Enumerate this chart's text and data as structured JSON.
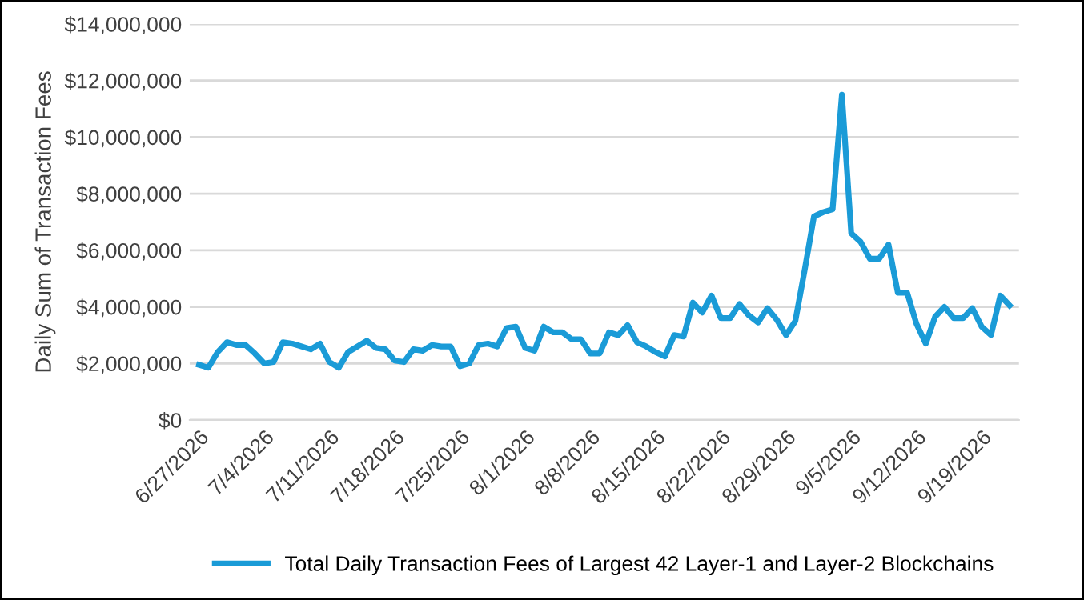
{
  "chart_data": {
    "type": "line",
    "ylabel": "Daily Sum of Transaction Fees",
    "categories": [
      "6/27/2026",
      null,
      null,
      null,
      null,
      null,
      null,
      "7/4/2026",
      null,
      null,
      null,
      null,
      null,
      null,
      "7/11/2026",
      null,
      null,
      null,
      null,
      null,
      null,
      "7/18/2026",
      null,
      null,
      null,
      null,
      null,
      null,
      "7/25/2026",
      null,
      null,
      null,
      null,
      null,
      null,
      "8/1/2026",
      null,
      null,
      null,
      null,
      null,
      null,
      "8/8/2026",
      null,
      null,
      null,
      null,
      null,
      null,
      "8/15/2026",
      null,
      null,
      null,
      null,
      null,
      null,
      "8/22/2026",
      null,
      null,
      null,
      null,
      null,
      null,
      "8/29/2026",
      null,
      null,
      null,
      null,
      null,
      null,
      "9/5/2026",
      null,
      null,
      null,
      null,
      null,
      null,
      "9/12/2026",
      null,
      null,
      null,
      null,
      null,
      null,
      "9/19/2026",
      null,
      null,
      null
    ],
    "series": [
      {
        "name": "Total Daily Transaction Fees of Largest 42 Layer-1 and Layer-2 Blockchains",
        "color": "#1a9bd7",
        "values": [
          1950000,
          1850000,
          2400000,
          2750000,
          2650000,
          2650000,
          2350000,
          2000000,
          2050000,
          2750000,
          2700000,
          2600000,
          2500000,
          2700000,
          2050000,
          1850000,
          2400000,
          2600000,
          2800000,
          2550000,
          2500000,
          2100000,
          2050000,
          2500000,
          2450000,
          2650000,
          2600000,
          2600000,
          1900000,
          2000000,
          2650000,
          2700000,
          2600000,
          3250000,
          3300000,
          2550000,
          2450000,
          3300000,
          3100000,
          3100000,
          2850000,
          2850000,
          2350000,
          2350000,
          3100000,
          3000000,
          3350000,
          2750000,
          2600000,
          2400000,
          2250000,
          3000000,
          2950000,
          4150000,
          3800000,
          4400000,
          3600000,
          3600000,
          4100000,
          3700000,
          3450000,
          3950000,
          3550000,
          3000000,
          3500000,
          5300000,
          7200000,
          7350000,
          7450000,
          11500000,
          6600000,
          6300000,
          5700000,
          5700000,
          6200000,
          4500000,
          4500000,
          3400000,
          2700000,
          3650000,
          4000000,
          3600000,
          3600000,
          3950000,
          3300000,
          3000000,
          4400000,
          4050000
        ]
      }
    ],
    "ylim": [
      0,
      14000000
    ],
    "yticks": [
      {
        "value": 0,
        "label": "$0"
      },
      {
        "value": 2000000,
        "label": "$2,000,000"
      },
      {
        "value": 4000000,
        "label": "$4,000,000"
      },
      {
        "value": 6000000,
        "label": "$6,000,000"
      },
      {
        "value": 8000000,
        "label": "$8,000,000"
      },
      {
        "value": 10000000,
        "label": "$10,000,000"
      },
      {
        "value": 12000000,
        "label": "$12,000,000"
      },
      {
        "value": 14000000,
        "label": "$14,000,000"
      }
    ],
    "grid": "y",
    "legend": "bottom",
    "marker": "none",
    "line_style": "solid"
  }
}
